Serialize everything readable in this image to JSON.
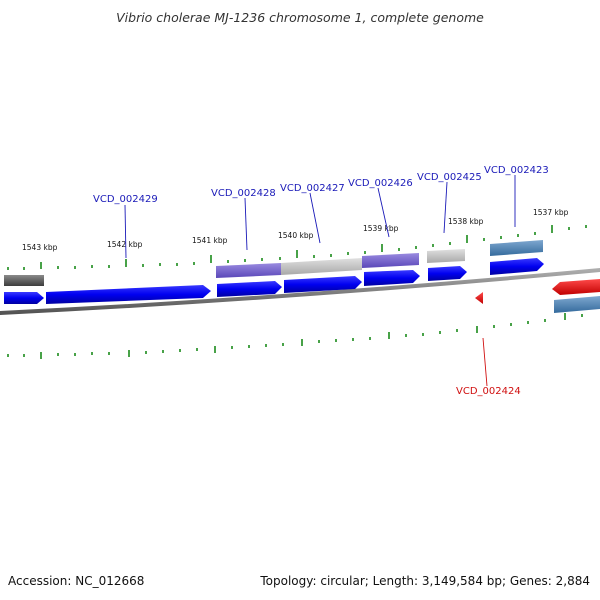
{
  "title": "Vibrio cholerae MJ-1236 chromosome 1, complete genome",
  "footer": {
    "accession": "Accession: NC_012668",
    "summary": "Topology: circular; Length: 3,149,584 bp; Genes: 2,884"
  },
  "scale_labels": [
    "1543 kbp",
    "1542 kbp",
    "1541 kbp",
    "1540 kbp",
    "1539 kbp",
    "1538 kbp",
    "1537 kbp"
  ],
  "gene_labels": [
    {
      "id": "VCD_002429",
      "strand": "forward"
    },
    {
      "id": "VCD_002428",
      "strand": "forward"
    },
    {
      "id": "VCD_002427",
      "strand": "forward"
    },
    {
      "id": "VCD_002426",
      "strand": "forward"
    },
    {
      "id": "VCD_002425",
      "strand": "forward"
    },
    {
      "id": "VCD_002423",
      "strand": "forward"
    },
    {
      "id": "VCD_002424",
      "strand": "reverse"
    }
  ],
  "colors": {
    "gene_blue": "#0a0ae6",
    "cog_purple": "#6f5bc9",
    "cog_gray": "#c8c8c8",
    "cog_steel": "#4f7fb0",
    "cog_dark": "#5a5a5a",
    "reverse_red": "#e00000",
    "ticks": "#1a8a1a",
    "backbone": "#7a7a7a"
  }
}
